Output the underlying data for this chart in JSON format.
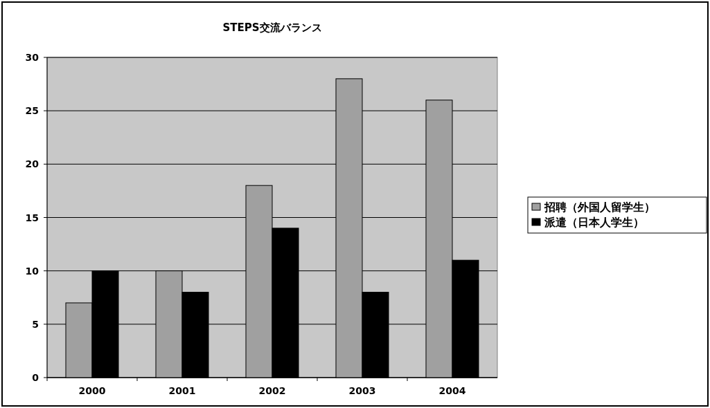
{
  "chart_data": {
    "type": "bar",
    "title": "STEPS交流バランス",
    "categories": [
      "2000",
      "2001",
      "2002",
      "2003",
      "2004"
    ],
    "series": [
      {
        "name": "招聘（外国人留学生）",
        "color": "#a0a0a0",
        "values": [
          7,
          10,
          18,
          28,
          26
        ]
      },
      {
        "name": "派遣（日本人学生）",
        "color": "#000000",
        "values": [
          10,
          8,
          14,
          8,
          11
        ]
      }
    ],
    "ylim": [
      0,
      30
    ],
    "yticks": [
      0,
      5,
      10,
      15,
      20,
      25,
      30
    ],
    "grid": "y",
    "legend": "right"
  }
}
